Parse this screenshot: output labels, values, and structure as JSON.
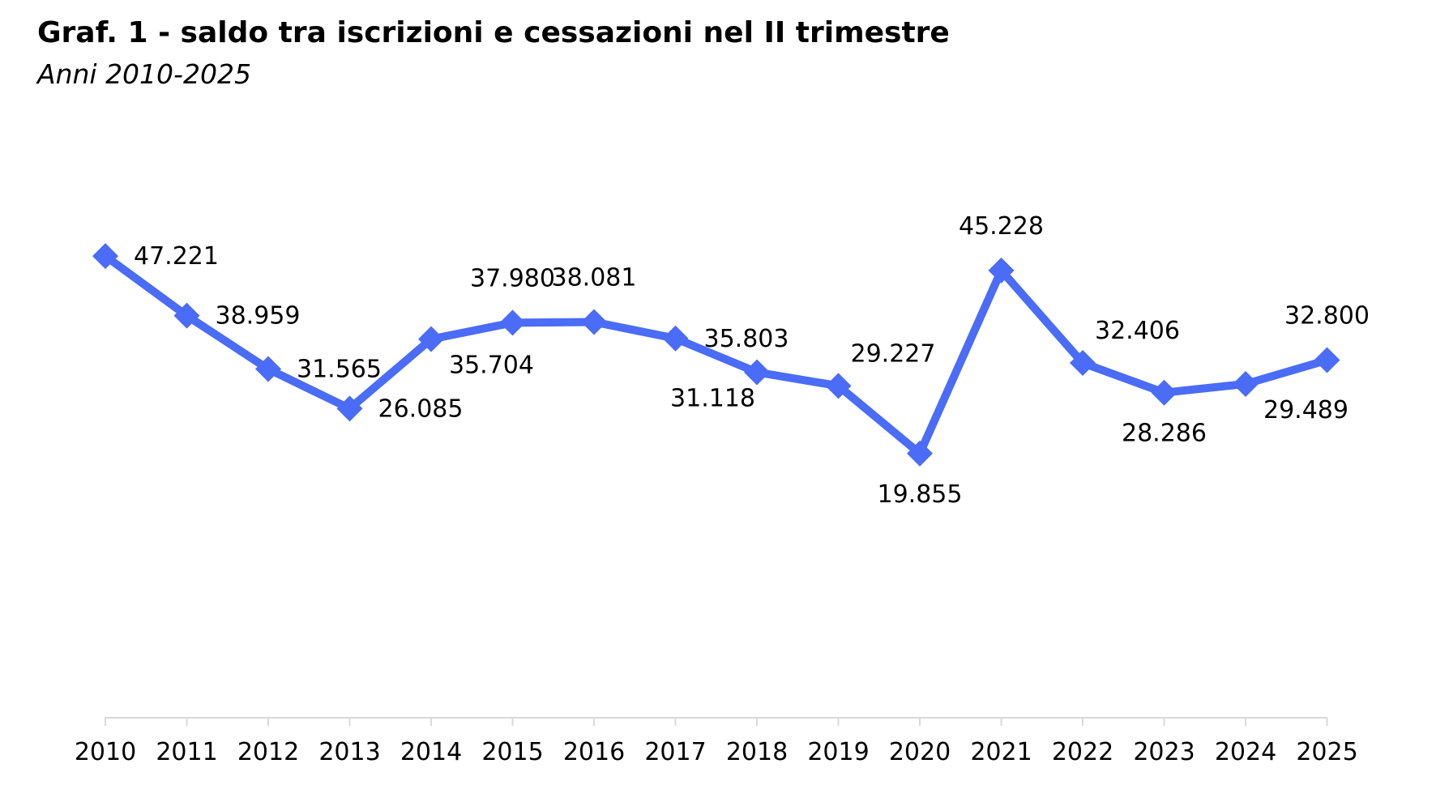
{
  "chart_data": {
    "type": "line",
    "title": "Graf. 1 - saldo tra iscrizioni e cessazioni nel II trimestre",
    "subtitle": "Anni 2010-2025",
    "categories": [
      "2010",
      "2011",
      "2012",
      "2013",
      "2014",
      "2015",
      "2016",
      "2017",
      "2018",
      "2019",
      "2020",
      "2021",
      "2022",
      "2023",
      "2024",
      "2025"
    ],
    "values": [
      47221,
      38959,
      31565,
      26085,
      35704,
      37980,
      38081,
      35803,
      31118,
      29227,
      19855,
      45228,
      32406,
      28286,
      29489,
      32800
    ],
    "data_labels": [
      "47.221",
      "38.959",
      "31.565",
      "26.085",
      "35.704",
      "37.980",
      "38.081",
      "35.803",
      "31.118",
      "29.227",
      "19.855",
      "45.228",
      "32.406",
      "28.286",
      "29.489",
      "32.800"
    ],
    "label_placement": [
      "right",
      "right",
      "right",
      "right",
      "below-right",
      "above",
      "above",
      "right",
      "below-left",
      "above-right",
      "below",
      "above",
      "above-right",
      "below",
      "below-right",
      "above"
    ],
    "xlabel": "",
    "ylabel": "",
    "ylim": [
      0,
      50000
    ],
    "grid": false,
    "legend": "none",
    "series_color": "#4A6CF7",
    "marker": "diamond"
  }
}
